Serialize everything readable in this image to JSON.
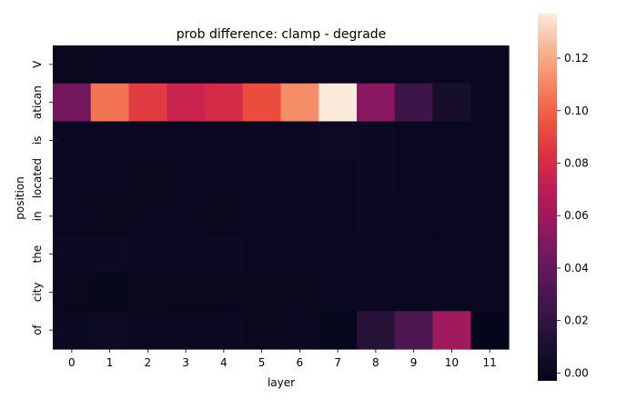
{
  "chart_data": {
    "type": "heatmap",
    "title": "prob difference: clamp - degrade",
    "xlabel": "layer",
    "ylabel": "position",
    "x_ticks": [
      "0",
      "1",
      "2",
      "3",
      "4",
      "5",
      "6",
      "7",
      "8",
      "9",
      "10",
      "11"
    ],
    "y_ticks": [
      "V",
      "atican",
      "is",
      "located",
      "in",
      "the",
      "city",
      "of"
    ],
    "values": [
      [
        0.0,
        0.001,
        0.001,
        0.001,
        0.001,
        0.001,
        0.001,
        0.001,
        0.001,
        0.001,
        0.001,
        0.001
      ],
      [
        0.045,
        0.105,
        0.087,
        0.075,
        0.08,
        0.093,
        0.112,
        0.137,
        0.052,
        0.025,
        0.007,
        0.001
      ],
      [
        0.001,
        0.001,
        0.001,
        0.001,
        0.001,
        0.001,
        0.001,
        0.003,
        0.002,
        0.001,
        0.001,
        0.001
      ],
      [
        0.001,
        0.001,
        0.0,
        0.001,
        0.001,
        0.001,
        0.001,
        0.001,
        0.002,
        0.001,
        0.001,
        0.001
      ],
      [
        0.001,
        0.0,
        0.001,
        0.001,
        0.0,
        0.001,
        0.001,
        0.001,
        0.002,
        0.002,
        0.001,
        0.001
      ],
      [
        0.002,
        0.002,
        0.001,
        0.001,
        0.002,
        0.001,
        0.001,
        0.001,
        0.001,
        0.001,
        0.001,
        0.001
      ],
      [
        0.0,
        -0.001,
        0.0,
        0.0,
        0.0,
        0.0,
        0.0,
        0.001,
        0.001,
        0.001,
        0.001,
        0.001
      ],
      [
        0.002,
        0.003,
        0.001,
        0.002,
        0.002,
        0.0,
        0.001,
        -0.001,
        0.015,
        0.03,
        0.06,
        -0.002
      ]
    ],
    "colorbar": {
      "colormap": "rocket",
      "vmin": -0.003,
      "vmax": 0.137,
      "ticks": [
        "0.00",
        "0.02",
        "0.04",
        "0.06",
        "0.08",
        "0.10",
        "0.12"
      ],
      "tick_values": [
        0,
        0.02,
        0.04,
        0.06,
        0.08,
        0.1,
        0.12
      ]
    },
    "grid": false
  }
}
